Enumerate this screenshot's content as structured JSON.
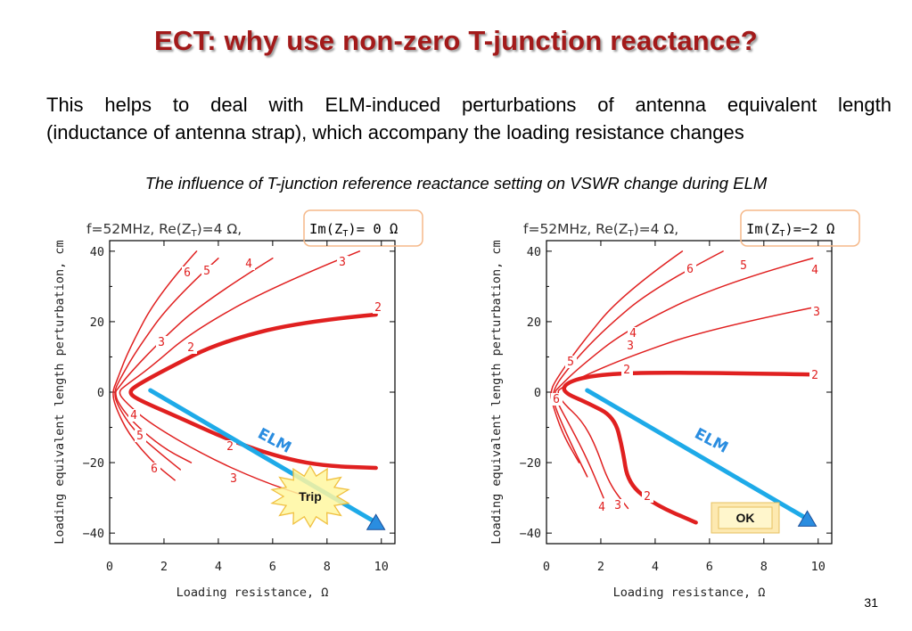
{
  "slide": {
    "title": "ECT: why use non-zero T-junction reactance?",
    "paragraph_lines": [
      "This helps to deal with ELM-induced perturbations of antenna equivalent length",
      "(inductance of antenna strap), which  accompany the loading resistance changes"
    ],
    "caption": "The influence of T-junction reference reactance setting on VSWR change during ELM",
    "page_number": "31"
  },
  "colors": {
    "title": "#a31a1a",
    "curves": "#e02020",
    "elm_line": "#1eaae8",
    "marker": "#2a8de0",
    "box_border": "#f5b98a"
  },
  "chart_data": [
    {
      "type": "line",
      "title_main": "f=52MHz, Re(Z",
      "title_sub1": "T",
      "title_mid": ")=4 Ω,",
      "title_box": "Im(Z",
      "title_sub2": "T",
      "title_box_end": ")= 0 Ω",
      "xlabel": "Loading resistance, Ω",
      "ylabel": "Loading equivalent length perturbation, cm",
      "xlim": [
        0,
        10.5
      ],
      "ylim": [
        -43,
        43
      ],
      "xticks": [
        "0",
        "2",
        "4",
        "6",
        "8",
        "10"
      ],
      "yticks": [
        "40",
        "20",
        "0",
        "−20",
        "−40"
      ],
      "curve_labels": [
        "6",
        "5",
        "4",
        "3",
        "2",
        "3",
        "2",
        "4",
        "5",
        "6",
        "2",
        "3"
      ],
      "elm_label": "ELM",
      "elm_line": {
        "start": [
          1.5,
          0.5
        ],
        "end": [
          9.8,
          -37
        ]
      },
      "badge": "Trip",
      "contours": [
        {
          "label": "2",
          "points": [
            [
              9.8,
              22
            ],
            [
              7,
              20
            ],
            [
              4,
              14
            ],
            [
              2.2,
              7
            ],
            [
              1,
              2
            ],
            [
              0.7,
              0
            ],
            [
              1,
              -2
            ],
            [
              2.5,
              -7
            ],
            [
              4.5,
              -14
            ],
            [
              6.5,
              -19
            ],
            [
              8,
              -21
            ],
            [
              9.8,
              -21.5
            ]
          ]
        },
        {
          "label": "3",
          "points": [
            [
              9.2,
              40
            ],
            [
              6,
              30
            ],
            [
              3,
              17
            ],
            [
              1.5,
              7
            ],
            [
              0.6,
              2
            ],
            [
              0.3,
              0
            ],
            [
              0.6,
              -3
            ],
            [
              1.5,
              -9
            ],
            [
              3.5,
              -18
            ],
            [
              5.5,
              -25
            ],
            [
              7.4,
              -30
            ]
          ]
        },
        {
          "label": "4",
          "points": [
            [
              6,
              38
            ],
            [
              3.5,
              26
            ],
            [
              1.8,
              14
            ],
            [
              0.7,
              5
            ],
            [
              0.3,
              1
            ],
            [
              0.2,
              0
            ],
            [
              0.3,
              -3
            ],
            [
              0.9,
              -9
            ],
            [
              2,
              -16
            ],
            [
              3,
              -20
            ]
          ]
        },
        {
          "label": "5",
          "points": [
            [
              4,
              38
            ],
            [
              2.3,
              26
            ],
            [
              1,
              12
            ],
            [
              0.4,
              4
            ],
            [
              0.15,
              0
            ],
            [
              0.3,
              -4
            ],
            [
              0.9,
              -11
            ],
            [
              1.8,
              -17
            ],
            [
              2.6,
              -22
            ]
          ]
        },
        {
          "label": "6",
          "points": [
            [
              3.2,
              40
            ],
            [
              1.8,
              28
            ],
            [
              0.7,
              12
            ],
            [
              0.25,
              3
            ],
            [
              0.1,
              0
            ],
            [
              0.2,
              -4
            ],
            [
              0.7,
              -12
            ],
            [
              1.6,
              -20
            ],
            [
              2.4,
              -25
            ]
          ]
        }
      ]
    },
    {
      "type": "line",
      "title_main": "f=52MHz, Re(Z",
      "title_sub1": "T",
      "title_mid": ")=4 Ω,",
      "title_box": "Im(Z",
      "title_sub2": "T",
      "title_box_end": ")=−2 Ω",
      "xlabel": "Loading resistance, Ω",
      "ylabel": "Loading equivalent length perturbation, cm",
      "xlim": [
        0,
        10.5
      ],
      "ylim": [
        -43,
        43
      ],
      "xticks": [
        "0",
        "2",
        "4",
        "6",
        "8",
        "10"
      ],
      "yticks": [
        "40",
        "20",
        "0",
        "−20",
        "−40"
      ],
      "curve_labels": [
        "6",
        "5",
        "4",
        "3",
        "4",
        "3",
        "5",
        "2",
        "2",
        "6",
        "2",
        "3",
        "4"
      ],
      "elm_label": "ELM",
      "elm_line": {
        "start": [
          1.5,
          0.5
        ],
        "end": [
          9.6,
          -36
        ]
      },
      "badge": "OK",
      "contours": [
        {
          "label": "2",
          "points": [
            [
              9.8,
              5
            ],
            [
              6,
              5.5
            ],
            [
              3,
              5.5
            ],
            [
              1.5,
              4.5
            ],
            [
              0.7,
              2.5
            ],
            [
              0.6,
              0
            ],
            [
              1.5,
              -3
            ],
            [
              2.5,
              -7
            ],
            [
              2.8,
              -16
            ],
            [
              3,
              -26
            ],
            [
              4,
              -32
            ],
            [
              5.5,
              -37
            ]
          ]
        },
        {
          "label": "3",
          "points": [
            [
              9.8,
              24
            ],
            [
              6,
              18
            ],
            [
              3,
              10
            ],
            [
              1.2,
              4
            ],
            [
              0.5,
              1
            ],
            [
              0.4,
              0
            ],
            [
              0.6,
              -3
            ],
            [
              1.3,
              -8
            ],
            [
              1.8,
              -15
            ],
            [
              2.3,
              -26
            ],
            [
              3,
              -33
            ]
          ]
        },
        {
          "label": "4",
          "points": [
            [
              9.8,
              38
            ],
            [
              6.5,
              31
            ],
            [
              3,
              18
            ],
            [
              1.2,
              7
            ],
            [
              0.4,
              1
            ],
            [
              0.3,
              0
            ],
            [
              0.4,
              -3
            ],
            [
              0.9,
              -10
            ],
            [
              1.5,
              -19
            ],
            [
              2.1,
              -30
            ]
          ]
        },
        {
          "label": "5",
          "points": [
            [
              6.5,
              40
            ],
            [
              4,
              30
            ],
            [
              2,
              17
            ],
            [
              0.7,
              6
            ],
            [
              0.2,
              0
            ],
            [
              0.3,
              -4
            ],
            [
              0.8,
              -13
            ],
            [
              1.5,
              -24
            ]
          ]
        },
        {
          "label": "6",
          "points": [
            [
              5,
              40
            ],
            [
              2.8,
              28
            ],
            [
              1.2,
              13
            ],
            [
              0.3,
              3
            ],
            [
              0.15,
              0
            ],
            [
              0.2,
              -3
            ],
            [
              0.6,
              -12
            ],
            [
              1.2,
              -20
            ]
          ]
        }
      ]
    }
  ]
}
